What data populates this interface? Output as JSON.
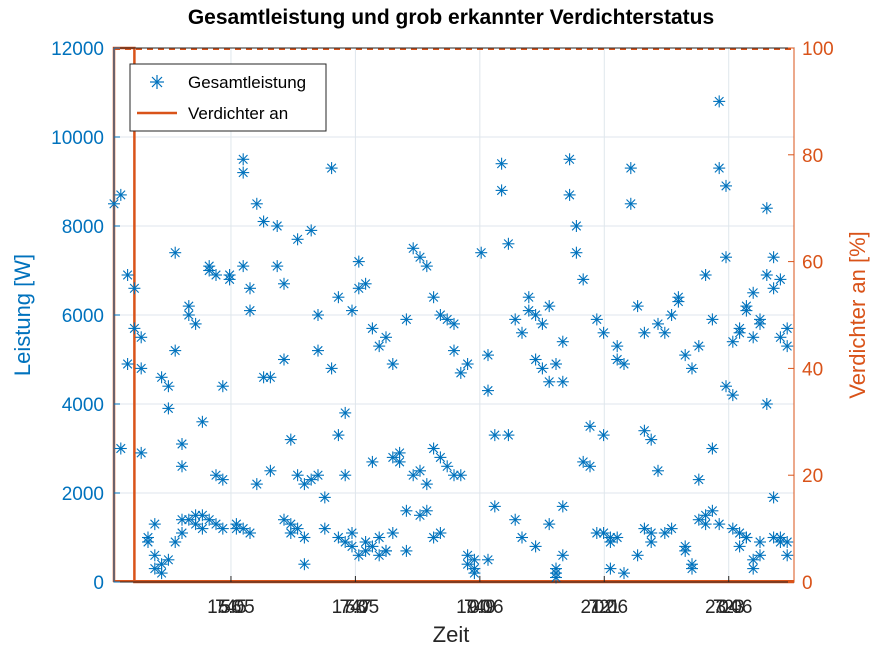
{
  "chart_data": {
    "type": "scatter",
    "title": "Gesamtleistung und grob erkannter Verdichterstatus",
    "xlabel": "Zeit",
    "ylabel": "Leistung [W]",
    "y2label": "Verdichter an [%]",
    "ylim": [
      0,
      12000
    ],
    "y2lim": [
      0,
      100
    ],
    "yticks": [
      0,
      2000,
      4000,
      6000,
      8000,
      10000,
      12000
    ],
    "y2ticks": [
      0,
      20,
      40,
      60,
      80,
      100
    ],
    "xticks": [
      {
        "label_a": "745",
        "label_b": "15.05",
        "label_c": "56"
      },
      {
        "label_a": "747",
        "label_b": "17.05",
        "label_c": "58"
      },
      {
        "label_a": "749",
        "label_b": "19.06",
        "label_c": "00"
      },
      {
        "label_a": "721",
        "label_b": "21.06",
        "label_c": "02"
      },
      {
        "label_a": "723",
        "label_b": "23.06",
        "label_c": "04"
      }
    ],
    "grid": true,
    "legend_position": "top-left",
    "colors": {
      "power": "#0072bd",
      "compressor": "#d95319",
      "axis_left": "#0072bd",
      "axis_right": "#d95319",
      "grid": "#dfe6ec"
    },
    "series": [
      {
        "name": "Gesamtleistung",
        "kind": "scatter",
        "marker": "asterisk",
        "points": [
          [
            0.0,
            8500
          ],
          [
            0.01,
            8700
          ],
          [
            0.01,
            3000
          ],
          [
            0.02,
            4900
          ],
          [
            0.02,
            6900
          ],
          [
            0.03,
            6600
          ],
          [
            0.03,
            5700
          ],
          [
            0.04,
            5500
          ],
          [
            0.04,
            4800
          ],
          [
            0.04,
            2900
          ],
          [
            0.05,
            1000
          ],
          [
            0.05,
            900
          ],
          [
            0.06,
            600
          ],
          [
            0.06,
            300
          ],
          [
            0.06,
            1300
          ],
          [
            0.07,
            200
          ],
          [
            0.07,
            4600
          ],
          [
            0.08,
            4400
          ],
          [
            0.08,
            3900
          ],
          [
            0.09,
            5200
          ],
          [
            0.09,
            7400
          ],
          [
            0.1,
            3100
          ],
          [
            0.1,
            2600
          ],
          [
            0.1,
            1400
          ],
          [
            0.11,
            6200
          ],
          [
            0.11,
            6000
          ],
          [
            0.12,
            5800
          ],
          [
            0.12,
            1500
          ],
          [
            0.13,
            3600
          ],
          [
            0.13,
            1200
          ],
          [
            0.14,
            7000
          ],
          [
            0.14,
            7100
          ],
          [
            0.15,
            6900
          ],
          [
            0.15,
            2400
          ],
          [
            0.16,
            2300
          ],
          [
            0.16,
            4400
          ],
          [
            0.17,
            6900
          ],
          [
            0.17,
            6800
          ],
          [
            0.18,
            1200
          ],
          [
            0.18,
            1300
          ],
          [
            0.19,
            9500
          ],
          [
            0.19,
            9200
          ],
          [
            0.19,
            7100
          ],
          [
            0.2,
            6100
          ],
          [
            0.2,
            6600
          ],
          [
            0.21,
            2200
          ],
          [
            0.21,
            8500
          ],
          [
            0.22,
            8100
          ],
          [
            0.22,
            4600
          ],
          [
            0.23,
            4600
          ],
          [
            0.23,
            2500
          ],
          [
            0.24,
            8000
          ],
          [
            0.24,
            7100
          ],
          [
            0.25,
            6700
          ],
          [
            0.25,
            5000
          ],
          [
            0.26,
            1100
          ],
          [
            0.26,
            3200
          ],
          [
            0.27,
            7700
          ],
          [
            0.27,
            2400
          ],
          [
            0.28,
            1000
          ],
          [
            0.28,
            400
          ],
          [
            0.29,
            7900
          ],
          [
            0.3,
            6000
          ],
          [
            0.3,
            5200
          ],
          [
            0.31,
            1900
          ],
          [
            0.31,
            1200
          ],
          [
            0.32,
            9300
          ],
          [
            0.32,
            4800
          ],
          [
            0.33,
            6400
          ],
          [
            0.33,
            3300
          ],
          [
            0.34,
            3800
          ],
          [
            0.34,
            2400
          ],
          [
            0.35,
            6100
          ],
          [
            0.35,
            1100
          ],
          [
            0.36,
            7200
          ],
          [
            0.36,
            6600
          ],
          [
            0.37,
            6700
          ],
          [
            0.37,
            900
          ],
          [
            0.38,
            5700
          ],
          [
            0.38,
            2700
          ],
          [
            0.39,
            5300
          ],
          [
            0.39,
            1000
          ],
          [
            0.4,
            5500
          ],
          [
            0.4,
            700
          ],
          [
            0.41,
            4900
          ],
          [
            0.41,
            1100
          ],
          [
            0.42,
            2900
          ],
          [
            0.43,
            5900
          ],
          [
            0.43,
            700
          ],
          [
            0.44,
            7500
          ],
          [
            0.44,
            2400
          ],
          [
            0.45,
            7300
          ],
          [
            0.45,
            2500
          ],
          [
            0.46,
            7100
          ],
          [
            0.46,
            2200
          ],
          [
            0.47,
            6400
          ],
          [
            0.47,
            1000
          ],
          [
            0.48,
            6000
          ],
          [
            0.48,
            1100
          ],
          [
            0.49,
            5900
          ],
          [
            0.5,
            5800
          ],
          [
            0.5,
            5200
          ],
          [
            0.51,
            4700
          ],
          [
            0.51,
            2400
          ],
          [
            0.52,
            4900
          ],
          [
            0.52,
            600
          ],
          [
            0.53,
            500
          ],
          [
            0.53,
            200
          ],
          [
            0.54,
            7400
          ],
          [
            0.55,
            5100
          ],
          [
            0.55,
            4300
          ],
          [
            0.56,
            3300
          ],
          [
            0.56,
            1700
          ],
          [
            0.57,
            9400
          ],
          [
            0.57,
            8800
          ],
          [
            0.58,
            7600
          ],
          [
            0.58,
            3300
          ],
          [
            0.59,
            5900
          ],
          [
            0.59,
            1400
          ],
          [
            0.6,
            5600
          ],
          [
            0.6,
            1000
          ],
          [
            0.61,
            6400
          ],
          [
            0.61,
            6100
          ],
          [
            0.62,
            5000
          ],
          [
            0.62,
            800
          ],
          [
            0.63,
            4800
          ],
          [
            0.64,
            4500
          ],
          [
            0.64,
            1300
          ],
          [
            0.65,
            200
          ],
          [
            0.65,
            100
          ],
          [
            0.66,
            5400
          ],
          [
            0.66,
            1700
          ],
          [
            0.67,
            9500
          ],
          [
            0.67,
            8700
          ],
          [
            0.68,
            8000
          ],
          [
            0.68,
            7400
          ],
          [
            0.69,
            6800
          ],
          [
            0.69,
            2700
          ],
          [
            0.7,
            2600
          ],
          [
            0.7,
            3500
          ],
          [
            0.71,
            5900
          ],
          [
            0.71,
            1100
          ],
          [
            0.72,
            5600
          ],
          [
            0.72,
            3300
          ],
          [
            0.73,
            1000
          ],
          [
            0.73,
            300
          ],
          [
            0.74,
            5300
          ],
          [
            0.74,
            5000
          ],
          [
            0.75,
            4900
          ],
          [
            0.75,
            200
          ],
          [
            0.76,
            9300
          ],
          [
            0.76,
            8500
          ],
          [
            0.77,
            6200
          ],
          [
            0.77,
            600
          ],
          [
            0.78,
            5600
          ],
          [
            0.78,
            3400
          ],
          [
            0.79,
            3200
          ],
          [
            0.79,
            900
          ],
          [
            0.8,
            5800
          ],
          [
            0.8,
            2500
          ],
          [
            0.81,
            5600
          ],
          [
            0.81,
            1100
          ],
          [
            0.82,
            6000
          ],
          [
            0.82,
            1200
          ],
          [
            0.83,
            6400
          ],
          [
            0.83,
            6300
          ],
          [
            0.84,
            5100
          ],
          [
            0.84,
            800
          ],
          [
            0.85,
            4800
          ],
          [
            0.85,
            400
          ],
          [
            0.86,
            5300
          ],
          [
            0.86,
            2300
          ],
          [
            0.87,
            6900
          ],
          [
            0.87,
            1300
          ],
          [
            0.88,
            5900
          ],
          [
            0.88,
            3000
          ],
          [
            0.89,
            10800
          ],
          [
            0.89,
            9300
          ],
          [
            0.9,
            8900
          ],
          [
            0.9,
            7300
          ],
          [
            0.91,
            5400
          ],
          [
            0.91,
            1200
          ],
          [
            0.92,
            5700
          ],
          [
            0.92,
            1100
          ],
          [
            0.93,
            6200
          ],
          [
            0.93,
            1000
          ],
          [
            0.94,
            5500
          ],
          [
            0.94,
            300
          ],
          [
            0.95,
            5900
          ],
          [
            0.95,
            900
          ],
          [
            0.96,
            8400
          ],
          [
            0.96,
            4000
          ],
          [
            0.97,
            1900
          ],
          [
            0.97,
            6600
          ],
          [
            0.98,
            6800
          ],
          [
            0.98,
            1000
          ],
          [
            0.99,
            5700
          ],
          [
            0.99,
            900
          ]
        ]
      },
      {
        "name": "Verdichter an",
        "kind": "line",
        "points": [
          [
            0.0,
            0
          ],
          [
            0.0,
            100
          ],
          [
            0.03,
            100
          ],
          [
            0.03,
            0
          ],
          [
            1.0,
            0
          ]
        ]
      }
    ],
    "power_extra": [
      [
        0.19,
        1200
      ],
      [
        0.2,
        1100
      ],
      [
        0.33,
        1000
      ],
      [
        0.34,
        900
      ],
      [
        0.35,
        800
      ],
      [
        0.36,
        600
      ],
      [
        0.37,
        700
      ],
      [
        0.38,
        800
      ],
      [
        0.39,
        600
      ],
      [
        0.4,
        700
      ],
      [
        0.52,
        400
      ],
      [
        0.53,
        300
      ],
      [
        0.55,
        500
      ],
      [
        0.65,
        300
      ],
      [
        0.66,
        600
      ],
      [
        0.72,
        1100
      ],
      [
        0.73,
        900
      ],
      [
        0.74,
        1000
      ],
      [
        0.78,
        1200
      ],
      [
        0.79,
        1100
      ],
      [
        0.84,
        700
      ],
      [
        0.85,
        300
      ],
      [
        0.86,
        1400
      ],
      [
        0.87,
        1500
      ],
      [
        0.88,
        1600
      ],
      [
        0.89,
        1300
      ],
      [
        0.92,
        800
      ],
      [
        0.93,
        1000
      ],
      [
        0.94,
        500
      ],
      [
        0.95,
        600
      ],
      [
        0.97,
        1000
      ],
      [
        0.98,
        900
      ],
      [
        0.99,
        600
      ],
      [
        0.9,
        4400
      ],
      [
        0.91,
        4200
      ],
      [
        0.92,
        5600
      ],
      [
        0.93,
        6100
      ],
      [
        0.94,
        6500
      ],
      [
        0.95,
        5800
      ],
      [
        0.96,
        6900
      ],
      [
        0.97,
        7300
      ],
      [
        0.98,
        5500
      ],
      [
        0.99,
        5300
      ],
      [
        0.62,
        6000
      ],
      [
        0.63,
        5800
      ],
      [
        0.64,
        6200
      ],
      [
        0.65,
        4900
      ],
      [
        0.66,
        4500
      ],
      [
        0.47,
        3000
      ],
      [
        0.48,
        2800
      ],
      [
        0.49,
        2600
      ],
      [
        0.5,
        2400
      ],
      [
        0.45,
        1500
      ],
      [
        0.46,
        1600
      ],
      [
        0.41,
        2800
      ],
      [
        0.42,
        2700
      ],
      [
        0.43,
        1600
      ],
      [
        0.28,
        2200
      ],
      [
        0.29,
        2300
      ],
      [
        0.3,
        2400
      ],
      [
        0.25,
        1400
      ],
      [
        0.26,
        1300
      ],
      [
        0.27,
        1200
      ],
      [
        0.13,
        1500
      ],
      [
        0.14,
        1400
      ],
      [
        0.15,
        1300
      ],
      [
        0.16,
        1200
      ],
      [
        0.11,
        1400
      ],
      [
        0.12,
        1300
      ],
      [
        0.07,
        400
      ],
      [
        0.08,
        500
      ],
      [
        0.09,
        900
      ],
      [
        0.1,
        1100
      ]
    ],
    "legend": [
      "Gesamtleistung",
      "Verdichter an"
    ]
  }
}
